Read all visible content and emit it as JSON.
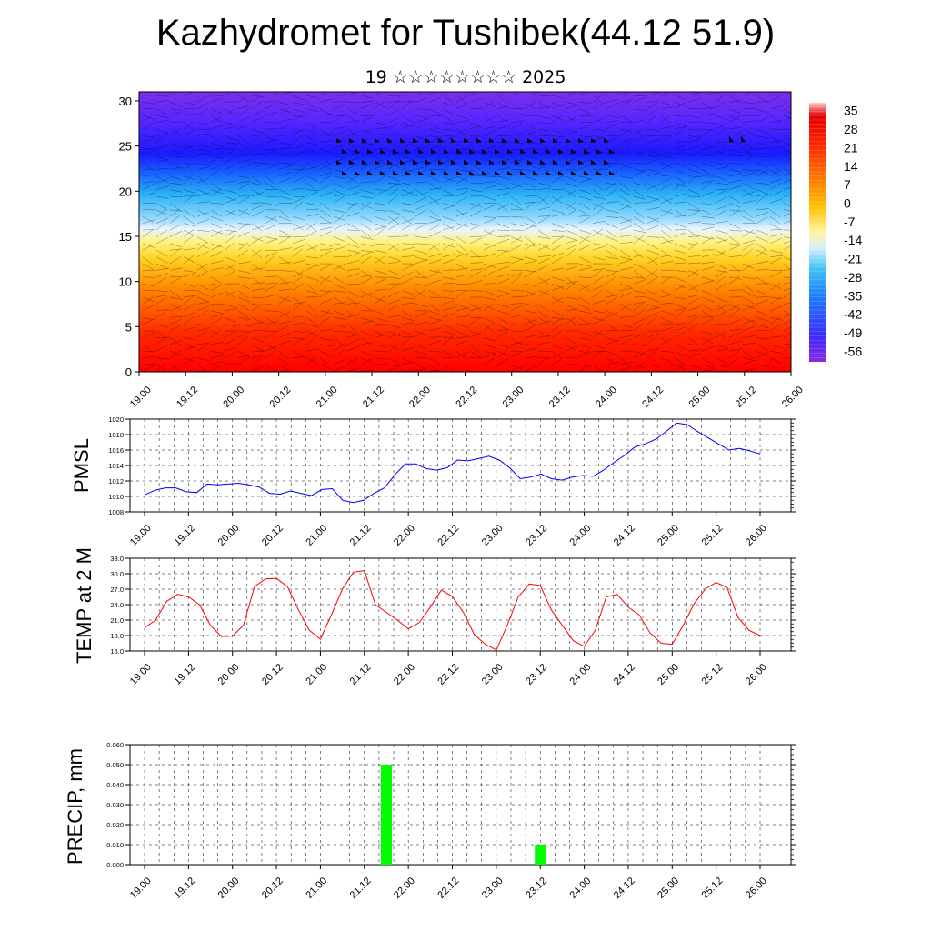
{
  "title": "Kazhydromet for Tushibek(44.12 51.9)",
  "subtitle": "19 ☆☆☆☆☆☆☆☆ 2025",
  "time_labels": [
    "19.00",
    "19.12",
    "20.00",
    "20.12",
    "21.00",
    "21.12",
    "22.00",
    "22.12",
    "23.00",
    "23.12",
    "24.00",
    "24.12",
    "25.00",
    "25.12",
    "26.00"
  ],
  "chart_data": [
    {
      "type": "heatmap",
      "title": "",
      "xlabel": "",
      "ylabel": "",
      "y_ticks": [
        0,
        5,
        10,
        15,
        20,
        25,
        30
      ],
      "ylim": [
        0,
        31
      ],
      "colorbar_labels": [
        "35",
        "28",
        "21",
        "14",
        "7",
        "0",
        "-7",
        "-14",
        "-21",
        "-28",
        "-35",
        "-42",
        "-49",
        "-56"
      ],
      "colorbar_range": [
        -60,
        38
      ],
      "overlay": "wind barbs"
    },
    {
      "type": "line",
      "ylabel": "PMSL",
      "ylim": [
        1008,
        1020
      ],
      "y_ticks": [
        "1020",
        "1018",
        "1016",
        "1014",
        "1012",
        "1010",
        "1008"
      ],
      "color": "#0000ff",
      "series": [
        {
          "values": [
            1010.2,
            1010.8,
            1011.1,
            1011.1,
            1010.6,
            1010.5,
            1011.6,
            1011.5,
            1011.6,
            1011.7,
            1011.5,
            1011.2,
            1010.4,
            1010.3,
            1010.7,
            1010.4,
            1010.1,
            1010.9,
            1011.0,
            1009.5,
            1009.2,
            1009.5,
            1010.4,
            1011.1,
            1012.8,
            1014.2,
            1014.2,
            1013.6,
            1013.4,
            1013.7,
            1014.7,
            1014.6,
            1014.9,
            1015.2,
            1014.7,
            1013.7,
            1012.3,
            1012.5,
            1012.9,
            1012.3,
            1012.1,
            1012.5,
            1012.7,
            1012.6,
            1013.4,
            1014.4,
            1015.3,
            1016.4,
            1016.8,
            1017.4,
            1018.4,
            1019.5,
            1019.3,
            1018.4,
            1017.6,
            1016.8,
            1016.0,
            1016.2,
            1015.9,
            1015.5
          ]
        }
      ]
    },
    {
      "type": "line",
      "ylabel": "TEMP at 2 M",
      "ylim": [
        15,
        33
      ],
      "y_ticks": [
        "33.0",
        "30.0",
        "27.0",
        "24.0",
        "21.0",
        "18.0",
        "15.0"
      ],
      "color": "#ff0000",
      "series": [
        {
          "values": [
            19.5,
            21.0,
            24.6,
            26.0,
            25.5,
            24.0,
            20.0,
            17.8,
            17.9,
            20.0,
            27.5,
            29.0,
            29.1,
            27.5,
            23.0,
            19.0,
            17.3,
            22.0,
            27.0,
            30.3,
            30.6,
            24.0,
            22.5,
            21.0,
            19.3,
            20.5,
            23.5,
            26.8,
            25.6,
            22.5,
            18.2,
            16.3,
            15.2,
            20.0,
            25.5,
            28.0,
            27.7,
            23.0,
            20.0,
            17.0,
            15.9,
            19.0,
            25.5,
            26.0,
            23.5,
            22.0,
            18.5,
            16.5,
            16.3,
            20.0,
            24.2,
            27.0,
            28.3,
            27.3,
            21.5,
            19.0,
            18.0
          ]
        }
      ]
    },
    {
      "type": "bar",
      "ylabel": "PRECIP, mm",
      "ylim": [
        0,
        0.06
      ],
      "y_ticks": [
        "0.060",
        "0.050",
        "0.040",
        "0.030",
        "0.020",
        "0.010",
        "0.000"
      ],
      "color": "#00ff00",
      "bars": [
        {
          "t": 21.75,
          "value": 0.05
        },
        {
          "t": 23.5,
          "value": 0.01
        }
      ]
    }
  ]
}
